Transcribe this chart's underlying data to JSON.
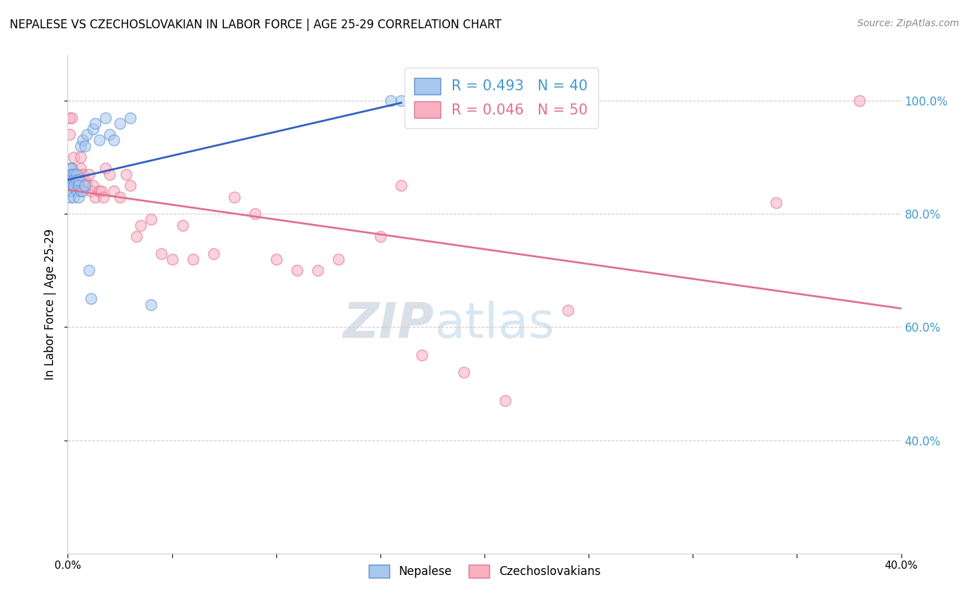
{
  "title": "NEPALESE VS CZECHOSLOVAKIAN IN LABOR FORCE | AGE 25-29 CORRELATION CHART",
  "source": "Source: ZipAtlas.com",
  "ylabel_left": "In Labor Force | Age 25-29",
  "xlim": [
    0.0,
    0.4
  ],
  "ylim": [
    0.2,
    1.08
  ],
  "xticks": [
    0.0,
    0.05,
    0.1,
    0.15,
    0.2,
    0.25,
    0.3,
    0.35,
    0.4
  ],
  "xtick_labels": [
    "0.0%",
    "",
    "",
    "",
    "",
    "",
    "",
    "",
    "40.0%"
  ],
  "yticks_right": [
    0.4,
    0.6,
    0.8,
    1.0
  ],
  "nepalese_color": "#a8c8f0",
  "nepalese_edge_color": "#6090d0",
  "czech_color": "#f8b0c0",
  "czech_edge_color": "#e07090",
  "trend_blue": "#3060c0",
  "trend_pink": "#e07090",
  "legend_R_nepalese": "R = 0.493",
  "legend_N_nepalese": "N = 40",
  "legend_R_czech": "R = 0.046",
  "legend_N_czech": "N = 50",
  "watermark_zip": "ZIP",
  "watermark_atlas": "atlas",
  "nepalese_x": [
    0.001,
    0.001,
    0.001,
    0.001,
    0.001,
    0.002,
    0.002,
    0.002,
    0.002,
    0.002,
    0.003,
    0.003,
    0.003,
    0.003,
    0.004,
    0.004,
    0.004,
    0.005,
    0.005,
    0.005,
    0.006,
    0.006,
    0.007,
    0.007,
    0.008,
    0.008,
    0.009,
    0.01,
    0.011,
    0.012,
    0.013,
    0.015,
    0.018,
    0.02,
    0.022,
    0.025,
    0.03,
    0.04,
    0.155,
    0.16
  ],
  "nepalese_y": [
    0.88,
    0.87,
    0.86,
    0.85,
    0.83,
    0.88,
    0.87,
    0.86,
    0.85,
    0.84,
    0.87,
    0.86,
    0.85,
    0.83,
    0.87,
    0.86,
    0.84,
    0.86,
    0.85,
    0.83,
    0.92,
    0.84,
    0.93,
    0.84,
    0.92,
    0.85,
    0.94,
    0.7,
    0.65,
    0.95,
    0.96,
    0.93,
    0.97,
    0.94,
    0.93,
    0.96,
    0.97,
    0.64,
    1.0,
    1.0
  ],
  "czech_x": [
    0.001,
    0.001,
    0.002,
    0.002,
    0.003,
    0.003,
    0.004,
    0.004,
    0.005,
    0.005,
    0.006,
    0.006,
    0.007,
    0.008,
    0.009,
    0.01,
    0.011,
    0.012,
    0.013,
    0.015,
    0.016,
    0.017,
    0.018,
    0.02,
    0.022,
    0.025,
    0.028,
    0.03,
    0.033,
    0.035,
    0.04,
    0.045,
    0.05,
    0.055,
    0.06,
    0.07,
    0.08,
    0.09,
    0.1,
    0.11,
    0.12,
    0.13,
    0.15,
    0.16,
    0.17,
    0.19,
    0.21,
    0.24,
    0.34,
    0.38
  ],
  "czech_y": [
    0.97,
    0.94,
    0.97,
    0.88,
    0.9,
    0.87,
    0.87,
    0.86,
    0.87,
    0.85,
    0.9,
    0.88,
    0.87,
    0.86,
    0.85,
    0.87,
    0.84,
    0.85,
    0.83,
    0.84,
    0.84,
    0.83,
    0.88,
    0.87,
    0.84,
    0.83,
    0.87,
    0.85,
    0.76,
    0.78,
    0.79,
    0.73,
    0.72,
    0.78,
    0.72,
    0.73,
    0.83,
    0.8,
    0.72,
    0.7,
    0.7,
    0.72,
    0.76,
    0.85,
    0.55,
    0.52,
    0.47,
    0.63,
    0.82,
    1.0
  ],
  "marker_size": 130,
  "marker_alpha": 0.55,
  "marker_lw": 1.2,
  "trend_lw": 2.0
}
